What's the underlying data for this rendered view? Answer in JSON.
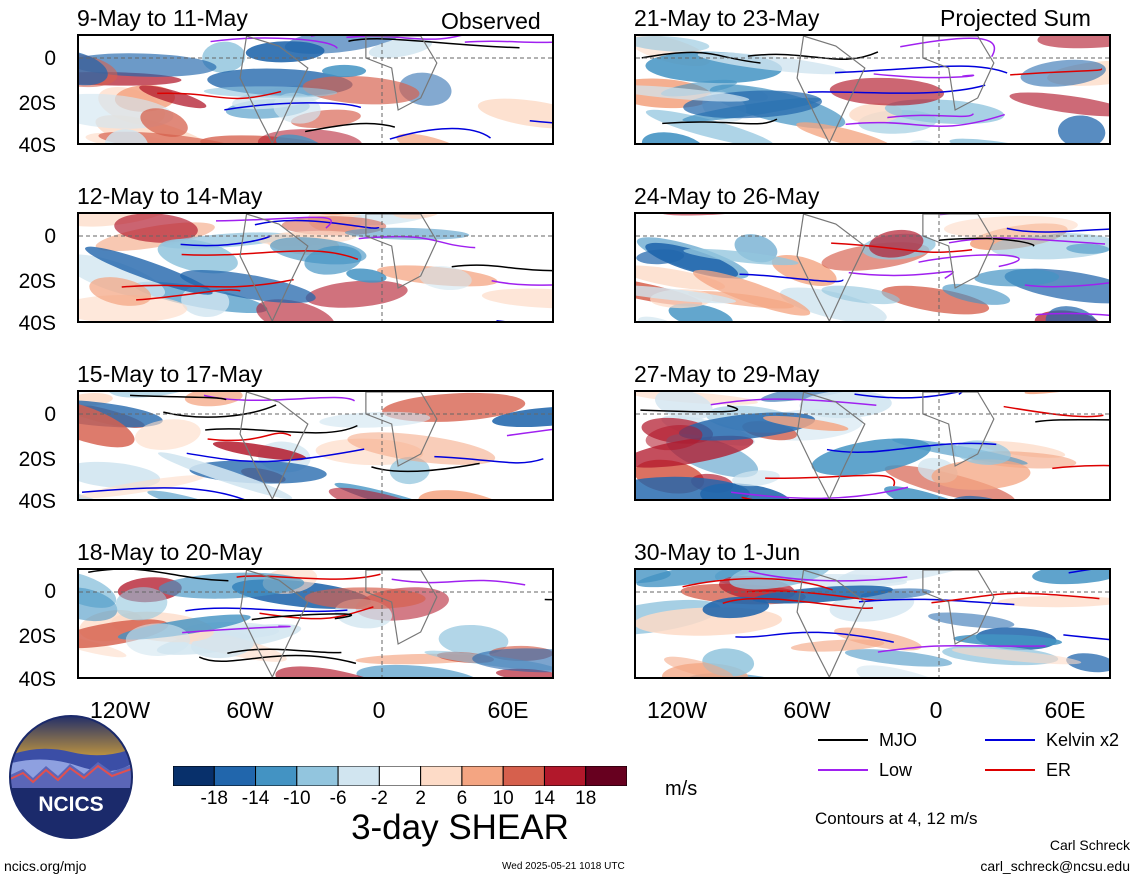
{
  "header": {
    "left_label": "Observed",
    "right_label": "Projected Sum"
  },
  "panels_left": [
    {
      "title": "9-May to 11-May"
    },
    {
      "title": "12-May to 14-May"
    },
    {
      "title": "15-May to 17-May"
    },
    {
      "title": "18-May to 20-May"
    }
  ],
  "panels_right": [
    {
      "title": "21-May to 23-May"
    },
    {
      "title": "24-May to 26-May"
    },
    {
      "title": "27-May to 29-May"
    },
    {
      "title": "30-May to 1-Jun"
    }
  ],
  "chart_data": {
    "type": "heatmap",
    "variable": "3-day SHEAR",
    "units": "m/s",
    "y_tick_labels": [
      "0",
      "20S",
      "40S"
    ],
    "x_tick_labels": [
      "120W",
      "60W",
      "0",
      "60E"
    ],
    "colorbar": {
      "tick_labels": [
        "-18",
        "-14",
        "-10",
        "-6",
        "-2",
        "2",
        "6",
        "10",
        "14",
        "18"
      ],
      "colors": [
        "#08306b",
        "#2166ac",
        "#4393c3",
        "#92c5de",
        "#d1e5f0",
        "#ffffff",
        "#fddbc7",
        "#f4a582",
        "#d6604d",
        "#b2182b",
        "#67001f"
      ]
    },
    "legend": [
      {
        "label": "MJO",
        "color": "#000000"
      },
      {
        "label": "Kelvin x2",
        "color": "#0000dd"
      },
      {
        "label": "Low",
        "color": "#a020f0"
      },
      {
        "label": "ER",
        "color": "#dd0000"
      }
    ],
    "contour_note": "Contours at 4, 12 m/s"
  },
  "footer": {
    "logo_text": "NCICS",
    "url": "ncics.org/mjo",
    "timestamp": "Wed 2025-05-21 1018 UTC",
    "author": "Carl Schreck",
    "email": "carl_schreck@ncsu.edu"
  }
}
